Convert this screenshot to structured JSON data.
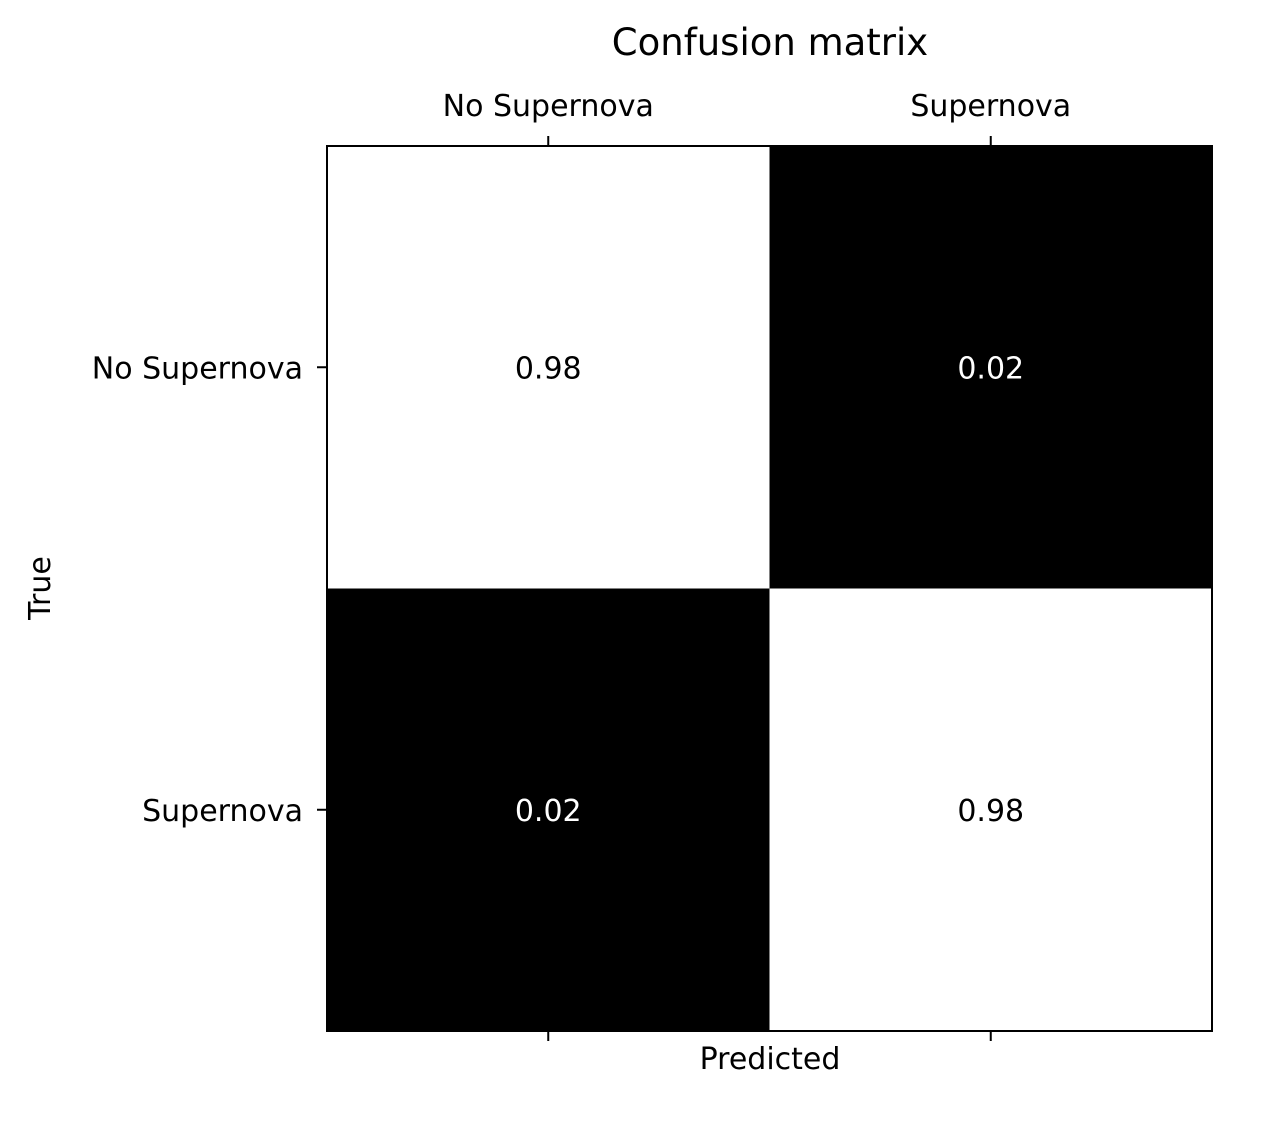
{
  "chart_data": {
    "type": "heatmap",
    "title": "Confusion matrix",
    "xlabel": "Predicted",
    "ylabel": "True",
    "x_categories": [
      "No Supernova",
      "Supernova"
    ],
    "y_categories": [
      "No Supernova",
      "Supernova"
    ],
    "values": [
      [
        0.98,
        0.02
      ],
      [
        0.02,
        0.98
      ]
    ],
    "value_labels": [
      [
        "0.98",
        "0.02"
      ],
      [
        "0.02",
        "0.98"
      ]
    ],
    "colormap": "grayscale (high = white, low = black)",
    "x_tick_position": "top"
  }
}
